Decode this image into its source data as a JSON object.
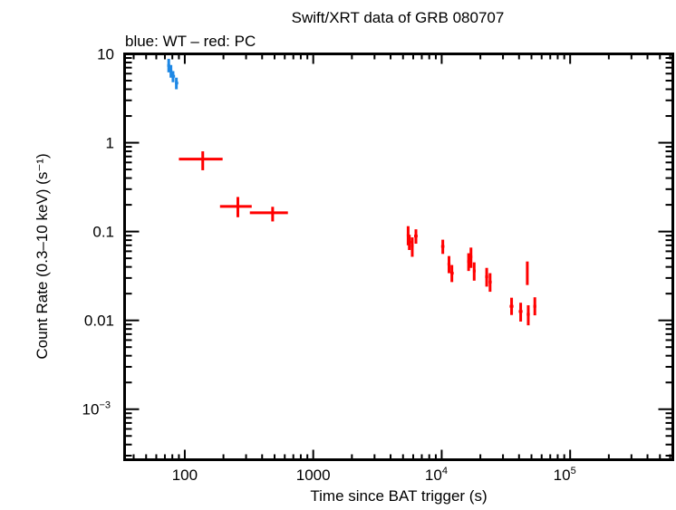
{
  "chart_data": {
    "type": "scatter",
    "title": "Swift/XRT data of GRB 080707",
    "subtitle": "blue: WT – red: PC",
    "xlabel": "Time since BAT trigger (s)",
    "ylabel": "Count Rate (0.3–10 keV) (s⁻¹)",
    "xscale": "log",
    "yscale": "log",
    "xlim": [
      34,
      630000
    ],
    "ylim": [
      0.00027,
      10
    ],
    "grid": false,
    "x_ticks": [
      {
        "value": 100,
        "label": "100"
      },
      {
        "value": 1000,
        "label": "1000"
      },
      {
        "value": 10000,
        "base": "10",
        "exp": "4"
      },
      {
        "value": 100000,
        "base": "10",
        "exp": "5"
      }
    ],
    "y_ticks": [
      {
        "value": 10,
        "label": "10"
      },
      {
        "value": 1,
        "label": "1"
      },
      {
        "value": 0.1,
        "label": "0.1"
      },
      {
        "value": 0.01,
        "label": "0.01"
      },
      {
        "value": 0.001,
        "base": "10",
        "exp": "−3"
      }
    ],
    "point_format": [
      "t",
      "t_lo",
      "t_hi",
      "rate",
      "rate_lo",
      "rate_hi"
    ],
    "series": [
      {
        "mode": "WT",
        "color": "#1e88e5",
        "points": [
          [
            75,
            73,
            77,
            7.4,
            6.2,
            8.8
          ],
          [
            78,
            76,
            80,
            6.4,
            5.4,
            7.5
          ],
          [
            81,
            79,
            84,
            5.6,
            4.8,
            6.4
          ],
          [
            86,
            84,
            89,
            4.7,
            4.0,
            5.4
          ]
        ]
      },
      {
        "mode": "PC",
        "color": "#ff0000",
        "points": [
          [
            138,
            90,
            197,
            0.655,
            0.49,
            0.8
          ],
          [
            259,
            188,
            332,
            0.192,
            0.145,
            0.245
          ],
          [
            483,
            321,
            635,
            0.163,
            0.13,
            0.19
          ],
          [
            5480,
            5350,
            5600,
            0.091,
            0.07,
            0.115
          ],
          [
            5600,
            5500,
            5750,
            0.076,
            0.062,
            0.092
          ],
          [
            5900,
            5750,
            6050,
            0.069,
            0.052,
            0.086
          ],
          [
            6300,
            6100,
            6500,
            0.089,
            0.073,
            0.106
          ],
          [
            10200,
            9900,
            10500,
            0.068,
            0.056,
            0.081
          ],
          [
            11400,
            11100,
            11700,
            0.043,
            0.034,
            0.053
          ],
          [
            12000,
            11700,
            12400,
            0.034,
            0.027,
            0.042
          ],
          [
            16200,
            15800,
            16600,
            0.046,
            0.036,
            0.057
          ],
          [
            16900,
            16500,
            17300,
            0.052,
            0.039,
            0.066
          ],
          [
            17900,
            17500,
            18400,
            0.036,
            0.028,
            0.045
          ],
          [
            22400,
            21800,
            23000,
            0.031,
            0.024,
            0.039
          ],
          [
            23800,
            23200,
            24500,
            0.027,
            0.021,
            0.034
          ],
          [
            35000,
            33800,
            36200,
            0.0144,
            0.0115,
            0.018
          ],
          [
            41200,
            39800,
            42600,
            0.0126,
            0.0097,
            0.0158
          ],
          [
            46400,
            45700,
            47100,
            0.035,
            0.025,
            0.046
          ],
          [
            47200,
            45900,
            48500,
            0.0117,
            0.0088,
            0.0148
          ],
          [
            53100,
            51700,
            54500,
            0.0144,
            0.0114,
            0.0182
          ]
        ]
      }
    ]
  }
}
